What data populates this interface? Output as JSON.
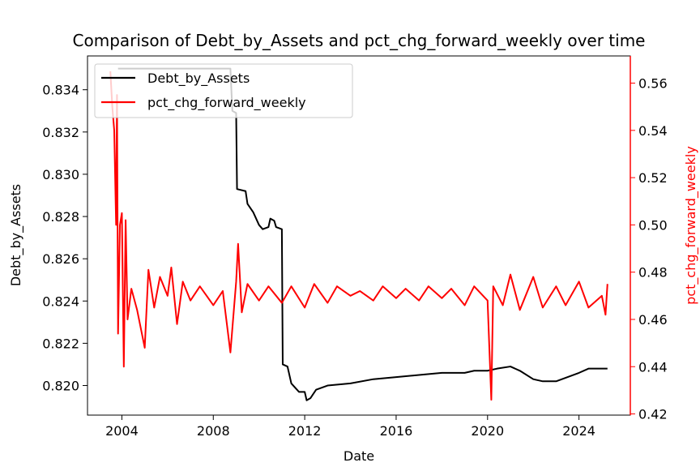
{
  "chart_data": {
    "type": "line",
    "title": "Comparison of Debt_by_Assets and pct_chg_forward_weekly over time",
    "xlabel": "Date",
    "x_ticks": [
      "2004",
      "2008",
      "2012",
      "2016",
      "2020",
      "2024"
    ],
    "legend_position": "top-left",
    "grid": false,
    "y_left": {
      "label": "Debt_by_Assets",
      "color": "#000000",
      "ticks": [
        "0.820",
        "0.822",
        "0.824",
        "0.826",
        "0.828",
        "0.830",
        "0.832",
        "0.834"
      ],
      "range": [
        0.8186,
        0.8356
      ]
    },
    "y_right": {
      "label": "pct_chg_forward_weekly",
      "color": "#ff0000",
      "ticks": [
        "0.42",
        "0.44",
        "0.46",
        "0.48",
        "0.50",
        "0.52",
        "0.54",
        "0.56"
      ],
      "range": [
        0.4195,
        0.5715
      ]
    },
    "x_range": [
      "2002-07-01",
      "2026-04-01"
    ],
    "series": [
      {
        "name": "Debt_by_Assets",
        "axis": "left",
        "color": "#000000",
        "points": [
          [
            "2003-11-01",
            0.835
          ],
          [
            "2004-06-01",
            0.835
          ],
          [
            "2006-01-01",
            0.835
          ],
          [
            "2008-01-01",
            0.835
          ],
          [
            "2008-10-01",
            0.835
          ],
          [
            "2008-11-01",
            0.833
          ],
          [
            "2009-01-01",
            0.8329
          ],
          [
            "2009-01-15",
            0.8293
          ],
          [
            "2009-06-01",
            0.8292
          ],
          [
            "2009-07-01",
            0.8286
          ],
          [
            "2009-10-01",
            0.8282
          ],
          [
            "2010-01-01",
            0.8276
          ],
          [
            "2010-03-01",
            0.8274
          ],
          [
            "2010-06-01",
            0.8275
          ],
          [
            "2010-07-01",
            0.8279
          ],
          [
            "2010-09-01",
            0.8278
          ],
          [
            "2010-10-01",
            0.8275
          ],
          [
            "2011-01-01",
            0.8274
          ],
          [
            "2011-01-15",
            0.821
          ],
          [
            "2011-04-01",
            0.8209
          ],
          [
            "2011-06-01",
            0.8201
          ],
          [
            "2011-10-01",
            0.8197
          ],
          [
            "2012-01-01",
            0.8197
          ],
          [
            "2012-02-01",
            0.8193
          ],
          [
            "2012-04-01",
            0.8194
          ],
          [
            "2012-07-01",
            0.8198
          ],
          [
            "2013-01-01",
            0.82
          ],
          [
            "2014-01-01",
            0.8201
          ],
          [
            "2015-01-01",
            0.8203
          ],
          [
            "2016-01-01",
            0.8204
          ],
          [
            "2017-01-01",
            0.8205
          ],
          [
            "2018-01-01",
            0.8206
          ],
          [
            "2019-01-01",
            0.8206
          ],
          [
            "2019-06-01",
            0.8207
          ],
          [
            "2020-01-01",
            0.8207
          ],
          [
            "2020-06-01",
            0.8208
          ],
          [
            "2021-01-01",
            0.8209
          ],
          [
            "2021-06-01",
            0.8207
          ],
          [
            "2022-01-01",
            0.8203
          ],
          [
            "2022-06-01",
            0.8202
          ],
          [
            "2023-01-01",
            0.8202
          ],
          [
            "2024-01-01",
            0.8206
          ],
          [
            "2024-06-01",
            0.8208
          ],
          [
            "2025-01-01",
            0.8208
          ],
          [
            "2025-04-01",
            0.8208
          ]
        ]
      },
      {
        "name": "pct_chg_forward_weekly",
        "axis": "right",
        "color": "#ff0000",
        "points": [
          [
            "2003-07-01",
            0.565
          ],
          [
            "2003-08-01",
            0.55
          ],
          [
            "2003-09-01",
            0.54
          ],
          [
            "2003-10-01",
            0.5
          ],
          [
            "2003-10-15",
            0.555
          ],
          [
            "2003-11-01",
            0.454
          ],
          [
            "2003-12-01",
            0.5
          ],
          [
            "2004-01-01",
            0.505
          ],
          [
            "2004-02-01",
            0.44
          ],
          [
            "2004-03-01",
            0.502
          ],
          [
            "2004-04-01",
            0.46
          ],
          [
            "2004-06-01",
            0.473
          ],
          [
            "2004-09-01",
            0.464
          ],
          [
            "2005-01-01",
            0.448
          ],
          [
            "2005-03-01",
            0.481
          ],
          [
            "2005-06-01",
            0.465
          ],
          [
            "2005-09-01",
            0.478
          ],
          [
            "2006-01-01",
            0.47
          ],
          [
            "2006-03-01",
            0.482
          ],
          [
            "2006-06-01",
            0.458
          ],
          [
            "2006-09-01",
            0.476
          ],
          [
            "2007-01-01",
            0.468
          ],
          [
            "2007-06-01",
            0.474
          ],
          [
            "2008-01-01",
            0.466
          ],
          [
            "2008-06-01",
            0.472
          ],
          [
            "2008-10-01",
            0.446
          ],
          [
            "2009-01-01",
            0.476
          ],
          [
            "2009-02-01",
            0.492
          ],
          [
            "2009-04-01",
            0.463
          ],
          [
            "2009-07-01",
            0.475
          ],
          [
            "2010-01-01",
            0.468
          ],
          [
            "2010-06-01",
            0.474
          ],
          [
            "2011-01-01",
            0.467
          ],
          [
            "2011-06-01",
            0.474
          ],
          [
            "2012-01-01",
            0.465
          ],
          [
            "2012-06-01",
            0.475
          ],
          [
            "2013-01-01",
            0.467
          ],
          [
            "2013-06-01",
            0.474
          ],
          [
            "2014-01-01",
            0.47
          ],
          [
            "2014-06-01",
            0.472
          ],
          [
            "2015-01-01",
            0.468
          ],
          [
            "2015-06-01",
            0.474
          ],
          [
            "2016-01-01",
            0.469
          ],
          [
            "2016-06-01",
            0.473
          ],
          [
            "2017-01-01",
            0.468
          ],
          [
            "2017-06-01",
            0.474
          ],
          [
            "2018-01-01",
            0.469
          ],
          [
            "2018-06-01",
            0.473
          ],
          [
            "2019-01-01",
            0.466
          ],
          [
            "2019-06-01",
            0.474
          ],
          [
            "2020-01-01",
            0.468
          ],
          [
            "2020-03-01",
            0.426
          ],
          [
            "2020-04-01",
            0.474
          ],
          [
            "2020-09-01",
            0.466
          ],
          [
            "2021-01-01",
            0.479
          ],
          [
            "2021-06-01",
            0.464
          ],
          [
            "2022-01-01",
            0.478
          ],
          [
            "2022-06-01",
            0.465
          ],
          [
            "2023-01-01",
            0.474
          ],
          [
            "2023-06-01",
            0.466
          ],
          [
            "2024-01-01",
            0.476
          ],
          [
            "2024-06-01",
            0.465
          ],
          [
            "2025-01-01",
            0.47
          ],
          [
            "2025-03-01",
            0.462
          ],
          [
            "2025-04-01",
            0.475
          ]
        ]
      }
    ]
  }
}
